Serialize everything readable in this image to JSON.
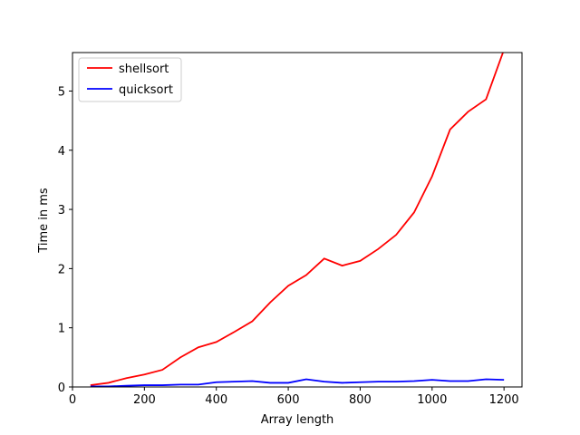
{
  "chart_data": {
    "type": "line",
    "title": "",
    "xlabel": "Array length",
    "ylabel": "Time in ms",
    "xlim": [
      0,
      1250
    ],
    "ylim": [
      0,
      5.65
    ],
    "xticks": [
      "0",
      "200",
      "400",
      "600",
      "800",
      "1000",
      "1200"
    ],
    "yticks": [
      "0",
      "1",
      "2",
      "3",
      "4",
      "5"
    ],
    "grid": false,
    "legend_position": "top-left",
    "x": [
      50,
      100,
      150,
      200,
      250,
      300,
      350,
      400,
      450,
      500,
      550,
      600,
      650,
      700,
      750,
      800,
      850,
      900,
      950,
      1000,
      1050,
      1100,
      1150,
      1200
    ],
    "series": [
      {
        "name": "shellsort",
        "color": "#ff0000",
        "values": [
          0.03,
          0.07,
          0.15,
          0.21,
          0.29,
          0.5,
          0.67,
          0.76,
          0.93,
          1.11,
          1.43,
          1.71,
          1.89,
          2.17,
          2.05,
          2.13,
          2.33,
          2.57,
          2.95,
          3.56,
          4.35,
          4.65,
          4.86,
          5.7
        ]
      },
      {
        "name": "quicksort",
        "color": "#0000ff",
        "values": [
          0.01,
          0.01,
          0.02,
          0.03,
          0.03,
          0.04,
          0.04,
          0.08,
          0.09,
          0.1,
          0.07,
          0.07,
          0.13,
          0.09,
          0.07,
          0.08,
          0.09,
          0.09,
          0.1,
          0.12,
          0.1,
          0.1,
          0.13,
          0.12
        ]
      }
    ]
  }
}
